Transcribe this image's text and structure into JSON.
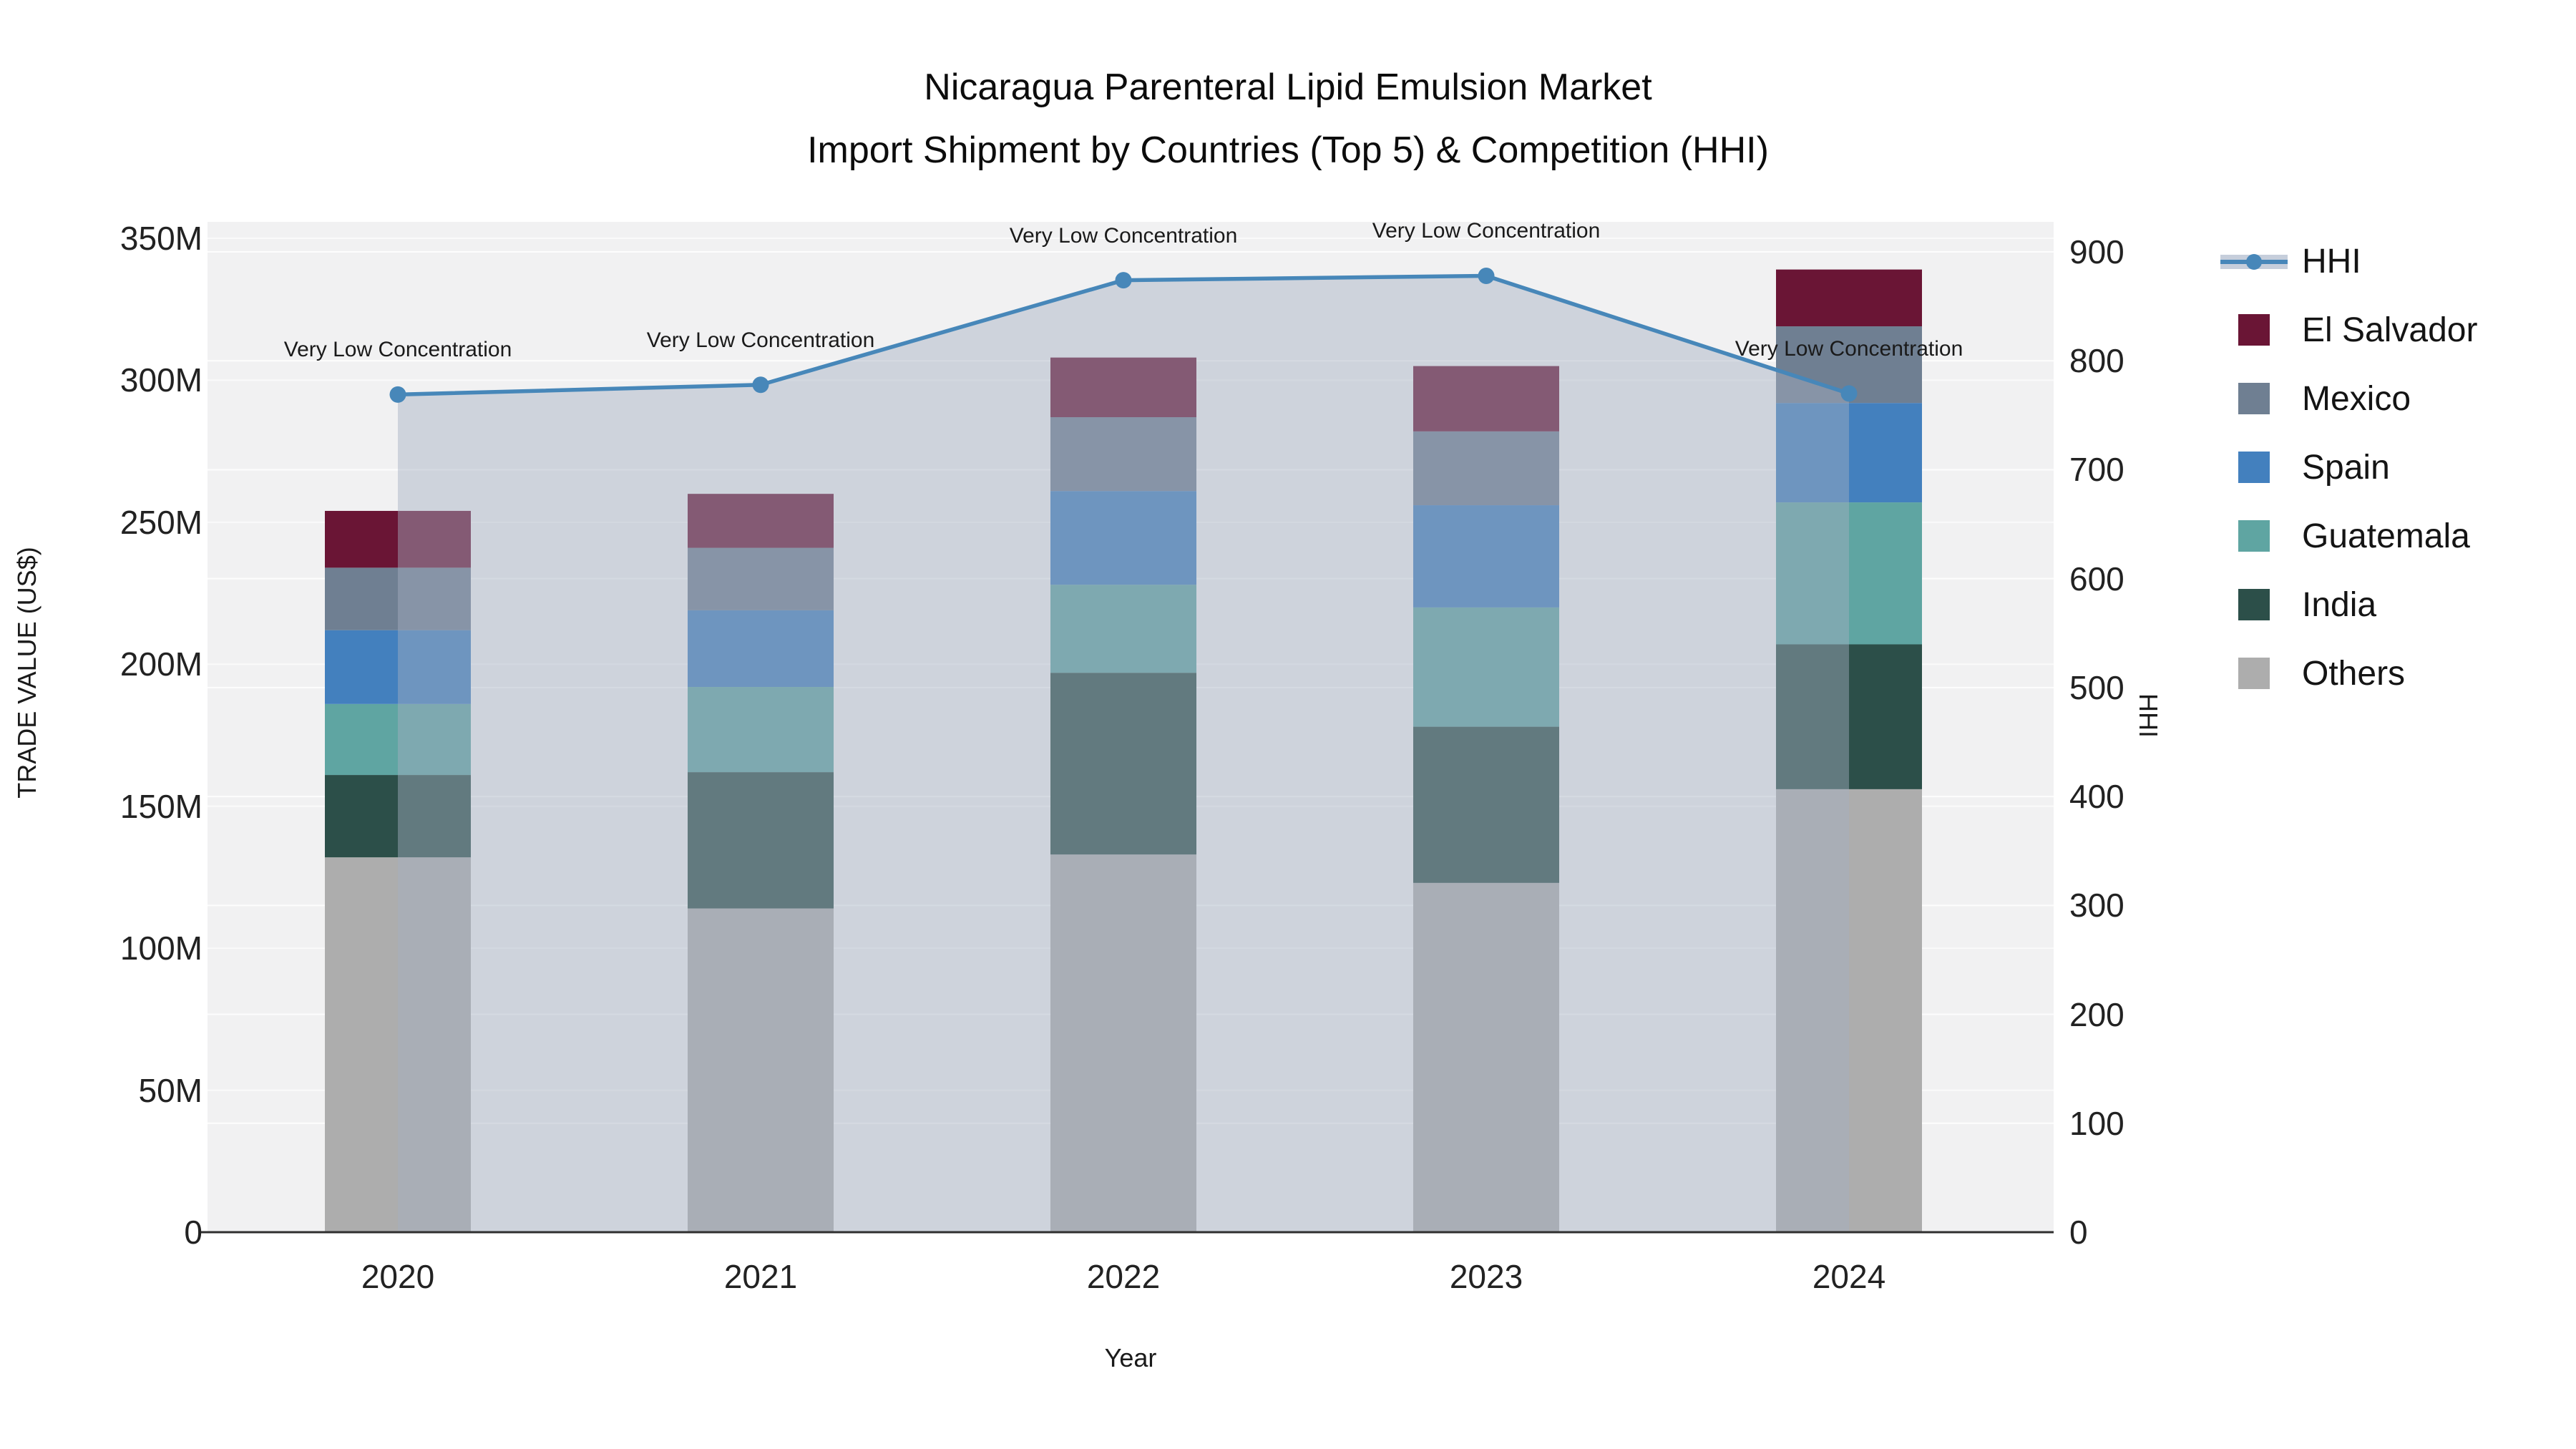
{
  "title": {
    "line1": "Nicaragua Parenteral Lipid Emulsion Market",
    "line2": "Import Shipment by Countries (Top 5) & Competition (HHI)"
  },
  "chart_data": {
    "type": "stacked-bar+line",
    "categories": [
      "2020",
      "2021",
      "2022",
      "2023",
      "2024"
    ],
    "value_unit": "USD millions (left axis), HHI index (right axis)",
    "series": [
      {
        "name": "Others",
        "color": "#ADADAD",
        "values": [
          132,
          114,
          133,
          123,
          156
        ]
      },
      {
        "name": "India",
        "color": "#2C4F49",
        "values": [
          29,
          48,
          64,
          55,
          51
        ]
      },
      {
        "name": "Guatemala",
        "color": "#5FA5A2",
        "values": [
          25,
          30,
          31,
          42,
          50
        ]
      },
      {
        "name": "Spain",
        "color": "#4380BE",
        "values": [
          26,
          27,
          33,
          36,
          35
        ]
      },
      {
        "name": "Mexico",
        "color": "#6F7F92",
        "values": [
          22,
          22,
          26,
          26,
          27
        ]
      },
      {
        "name": "El Salvador",
        "color": "#6A1535",
        "values": [
          20,
          19,
          21,
          23,
          20
        ]
      }
    ],
    "line": {
      "name": "HHI",
      "axis": "right",
      "color": "#4787B9",
      "fill_color": "rgba(163,175,193,0.45)",
      "values": [
        769,
        778,
        874,
        878,
        770
      ]
    },
    "annotation_labels": [
      "Very Low Concentration",
      "Very Low Concentration",
      "Very Low Concentration",
      "Very Low Concentration",
      "Very Low Concentration"
    ],
    "left_axis": {
      "label": "TRADE VALUE (US$)",
      "range": [
        0,
        350
      ],
      "tick_step": 50,
      "ticks": [
        "0",
        "50M",
        "100M",
        "150M",
        "200M",
        "250M",
        "300M",
        "350M"
      ]
    },
    "right_axis": {
      "label": "HHI",
      "range": [
        0,
        900
      ],
      "tick_step": 100,
      "ticks": [
        "0",
        "100",
        "200",
        "300",
        "400",
        "500",
        "600",
        "700",
        "800",
        "900"
      ]
    },
    "x_axis": {
      "label": "Year"
    },
    "grid": true,
    "legend_position": "right",
    "panel_color": "#f1f1f2"
  },
  "legend": {
    "items": [
      {
        "label": "HHI",
        "type": "line-fill",
        "color": "#4787B9",
        "band_color": "#C6CEDB"
      },
      {
        "label": "El Salvador",
        "type": "swatch",
        "color": "#6A1535"
      },
      {
        "label": "Mexico",
        "type": "swatch",
        "color": "#6F7F92"
      },
      {
        "label": "Spain",
        "type": "swatch",
        "color": "#4380BE"
      },
      {
        "label": "Guatemala",
        "type": "swatch",
        "color": "#5FA5A2"
      },
      {
        "label": "India",
        "type": "swatch",
        "color": "#2C4F49"
      },
      {
        "label": "Others",
        "type": "swatch",
        "color": "#ADADAD"
      }
    ]
  }
}
